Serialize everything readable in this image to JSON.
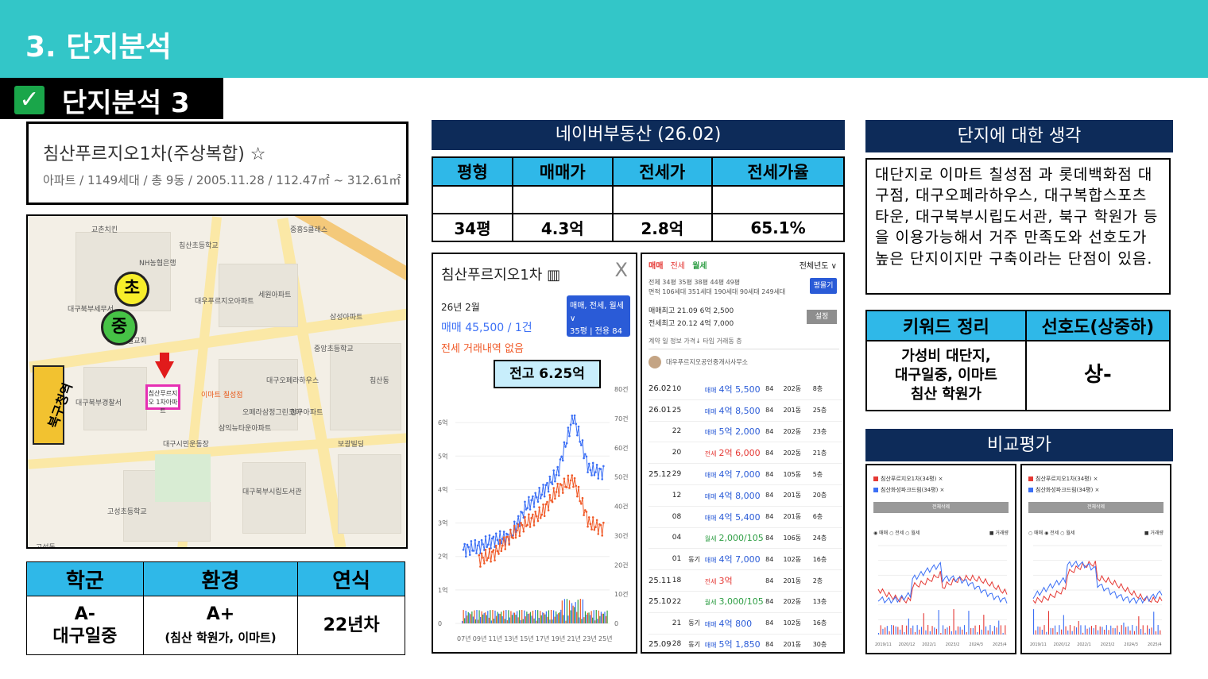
{
  "header": {
    "title": "3. 단지분석"
  },
  "subheader": {
    "check": "✓",
    "title": "단지분석 3"
  },
  "complex": {
    "name": "침산푸르지오1차(주상복합) ☆",
    "meta": "아파트 / 1149세대 / 총 9동 / 2005.11.28 / 112.47㎡ ~ 312.61㎡"
  },
  "map": {
    "marker_elementary": "초",
    "marker_middle": "중",
    "target_label": "침산푸르지오 1차아파트",
    "office_label": "북구청역",
    "labels": [
      "교촌치킨",
      "침산초등학교",
      "NH농협은행",
      "중흥S클래스",
      "대구북부세무서",
      "대우푸르지오아파트",
      "세원아파트",
      "대구북부경찰서",
      "삼성아파트",
      "이마트 칠성점",
      "대구오페라하우스",
      "고성동",
      "청구아파트",
      "대구제일교회",
      "중앙초등학교",
      "침산동",
      "삼익뉴타운아파트",
      "오페라삼정그린코아",
      "대구북부시립도서관",
      "고성초등학교",
      "보광빌딩",
      "대구시민운동장"
    ]
  },
  "score": {
    "headers": [
      "학군",
      "환경",
      "연식"
    ],
    "school_line1": "A-",
    "school_line2": "대구일중",
    "env_line1": "A+",
    "env_line2": "(침산 학원가, 이마트)",
    "age": "22년차"
  },
  "naver": {
    "title": "네이버부동산 (26.02)",
    "headers": [
      "평형",
      "매매가",
      "전세가",
      "전세가율"
    ],
    "row": [
      "34평",
      "4.3억",
      "2.8억",
      "65.1%"
    ]
  },
  "chart_panel": {
    "title": "침산푸르지오1차 ▥",
    "close": "X",
    "month": "26년 2월",
    "sale": "매매 45,500 / 1건",
    "jeonse": "전세 거래내역 없음",
    "filter_line1": "매매, 전세, 월세 ∨",
    "filter_line2": "35평 | 전용 84㎡",
    "callout": "전고 6.25억",
    "y_left": [
      "6억",
      "5억",
      "4억",
      "3억",
      "2억",
      "1억",
      "0"
    ],
    "y_right": [
      "80건",
      "70건",
      "60건",
      "50건",
      "40건",
      "30건",
      "20건",
      "10건",
      "0"
    ],
    "x_labels": [
      "07년",
      "09년",
      "11년",
      "13년",
      "15년",
      "17년",
      "19년",
      "21년",
      "23년",
      "25년"
    ]
  },
  "chart_data": {
    "type": "line",
    "title": "",
    "xlabel": "",
    "ylabel": "",
    "ylim": [
      0,
      7
    ],
    "x": [
      "07년",
      "09년",
      "11년",
      "13년",
      "15년",
      "17년",
      "19년",
      "21년",
      "23년",
      "25년"
    ],
    "series": [
      {
        "name": "매매",
        "color": "#3b6ff5",
        "values": [
          2.2,
          2.3,
          2.5,
          2.6,
          3.5,
          3.9,
          4.5,
          6.2,
          4.6,
          4.5
        ]
      },
      {
        "name": "전세",
        "color": "#f05a28",
        "values": [
          null,
          1.9,
          2.1,
          2.6,
          3.0,
          3.3,
          4.0,
          4.3,
          3.0,
          2.8
        ]
      }
    ]
  },
  "tx_panel": {
    "tabs": [
      "매매",
      "전세",
      "월세"
    ],
    "year": "전체년도 ∨",
    "sizes_line1": "전체   34평   35평   38평   44평   49평",
    "sizes_line2": "면적  106세대  351세대  190세대  90세대  249세대",
    "size_btn": "평몰기",
    "max_line1": "매매최고 21.09  6억 2,500",
    "max_line2": "전세최고 20.12  4억 7,000",
    "set_btn": "설정",
    "head": "계약   일   정보         가격↓          타입   거래동   층",
    "agent": "대우푸르지오공인중개사사무소",
    "rows": [
      {
        "ym": "26.02",
        "d": "10",
        "tag": "",
        "type": "매매",
        "price": "4억 5,500",
        "size": "84",
        "dong": "202동",
        "floor": "8층",
        "kind": "sale"
      },
      {
        "ym": "26.01",
        "d": "25",
        "tag": "",
        "type": "매매",
        "price": "4억 8,500",
        "size": "84",
        "dong": "201동",
        "floor": "25층",
        "kind": "sale"
      },
      {
        "ym": "",
        "d": "22",
        "tag": "",
        "type": "매매",
        "price": "5억 2,000",
        "size": "84",
        "dong": "202동",
        "floor": "23층",
        "kind": "sale"
      },
      {
        "ym": "",
        "d": "20",
        "tag": "",
        "type": "전세",
        "price": "2억 6,000",
        "size": "84",
        "dong": "202동",
        "floor": "21층",
        "kind": "jeonse"
      },
      {
        "ym": "25.12",
        "d": "29",
        "tag": "",
        "type": "매매",
        "price": "4억 7,000",
        "size": "84",
        "dong": "105동",
        "floor": "5층",
        "kind": "sale"
      },
      {
        "ym": "",
        "d": "12",
        "tag": "",
        "type": "매매",
        "price": "4억 8,000",
        "size": "84",
        "dong": "201동",
        "floor": "20층",
        "kind": "sale"
      },
      {
        "ym": "",
        "d": "08",
        "tag": "",
        "type": "매매",
        "price": "4억 5,400",
        "size": "84",
        "dong": "201동",
        "floor": "6층",
        "kind": "sale"
      },
      {
        "ym": "",
        "d": "04",
        "tag": "",
        "type": "월세",
        "price": "2,000/105",
        "size": "84",
        "dong": "106동",
        "floor": "24층",
        "kind": "wol"
      },
      {
        "ym": "",
        "d": "01",
        "tag": "동기",
        "type": "매매",
        "price": "4억 7,000",
        "size": "84",
        "dong": "102동",
        "floor": "16층",
        "kind": "sale"
      },
      {
        "ym": "25.11",
        "d": "18",
        "tag": "",
        "type": "전세",
        "price": "3억",
        "size": "84",
        "dong": "201동",
        "floor": "2층",
        "kind": "jeonse"
      },
      {
        "ym": "25.10",
        "d": "22",
        "tag": "",
        "type": "월세",
        "price": "3,000/105",
        "size": "84",
        "dong": "202동",
        "floor": "13층",
        "kind": "wol"
      },
      {
        "ym": "",
        "d": "21",
        "tag": "동기",
        "type": "매매",
        "price": "4억 800",
        "size": "84",
        "dong": "102동",
        "floor": "16층",
        "kind": "sale"
      },
      {
        "ym": "25.09",
        "d": "28",
        "tag": "동기",
        "type": "매매",
        "price": "5억 1,850",
        "size": "84",
        "dong": "201동",
        "floor": "30층",
        "kind": "sale"
      }
    ]
  },
  "thought": {
    "title": "단지에 대한 생각",
    "text": "대단지로 이마트 칠성점 과 롯데백화점 대구점, 대구오페라하우스, 대구복합스포츠타운, 대구북부시립도서관, 북구 학원가 등을 이용가능해서 거주 만족도와 선호도가 높은 단지이지만 구축이라는 단점이 있음."
  },
  "keyword": {
    "headers": [
      "키워드 정리",
      "선호도(상중하)"
    ],
    "line1": "가성비 대단지,",
    "line2": "대구일중, 이마트",
    "line3": "침산 학원가",
    "grade": "상-"
  },
  "compare": {
    "title": "비교평가",
    "card1": {
      "legend1": "침산푸르지오1차(34평) ×",
      "legend2": "침산화성파크드림(34평) ×",
      "bar": "전체삭제",
      "radio": "◉ 매매  ○ 전세  ○ 월세",
      "radio_r": "■ 거래량",
      "x": [
        "2019/11",
        "2020/12",
        "2022/1",
        "2023/2",
        "2024/3",
        "2025/4"
      ]
    },
    "card2": {
      "legend1": "침산푸르지오1차(34평) ×",
      "legend2": "침산화성파크드림(34평) ×",
      "bar": "전체삭제",
      "radio": "○ 매매  ◉ 전세  ○ 월세",
      "radio_r": "■ 거래량",
      "x": [
        "2019/11",
        "2020/12",
        "2022/1",
        "2023/2",
        "2024/3",
        "2025/4"
      ]
    }
  }
}
